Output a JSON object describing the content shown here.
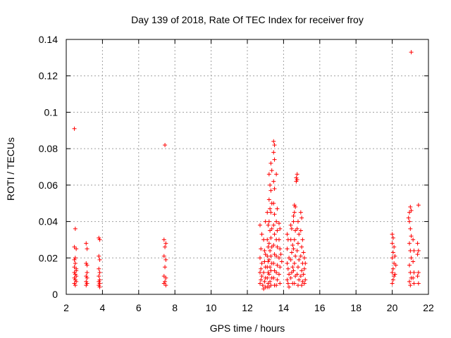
{
  "chart_data": {
    "type": "scatter",
    "title": "Day 139 of 2018, Rate Of TEC Index for receiver froy",
    "xlabel": "GPS time / hours",
    "ylabel": "ROTI / TECUs",
    "xlim": [
      2,
      22
    ],
    "ylim": [
      0,
      0.14
    ],
    "xticks": [
      2,
      4,
      6,
      8,
      10,
      12,
      14,
      16,
      18,
      20,
      22
    ],
    "yticks": [
      0,
      0.02,
      0.04,
      0.06,
      0.08,
      0.1,
      0.12,
      0.14
    ],
    "grid": true,
    "marker": "+",
    "color": "#ff0000",
    "series": [
      {
        "name": "ROTI",
        "points": [
          [
            2.45,
            0.091
          ],
          [
            2.5,
            0.036
          ],
          [
            2.45,
            0.026
          ],
          [
            2.55,
            0.025
          ],
          [
            2.45,
            0.019
          ],
          [
            2.5,
            0.017
          ],
          [
            2.55,
            0.014
          ],
          [
            2.45,
            0.012
          ],
          [
            2.5,
            0.011
          ],
          [
            2.55,
            0.01
          ],
          [
            2.45,
            0.009
          ],
          [
            2.5,
            0.008
          ],
          [
            2.55,
            0.007
          ],
          [
            2.45,
            0.006
          ],
          [
            2.5,
            0.005
          ],
          [
            2.55,
            0.013
          ],
          [
            2.45,
            0.015
          ],
          [
            2.5,
            0.02
          ],
          [
            3.1,
            0.028
          ],
          [
            3.15,
            0.025
          ],
          [
            3.1,
            0.017
          ],
          [
            3.15,
            0.016
          ],
          [
            3.1,
            0.01
          ],
          [
            3.15,
            0.009
          ],
          [
            3.1,
            0.007
          ],
          [
            3.15,
            0.006
          ],
          [
            3.1,
            0.005
          ],
          [
            3.15,
            0.012
          ],
          [
            3.8,
            0.031
          ],
          [
            3.85,
            0.03
          ],
          [
            3.8,
            0.021
          ],
          [
            3.85,
            0.019
          ],
          [
            3.8,
            0.014
          ],
          [
            3.85,
            0.012
          ],
          [
            3.8,
            0.01
          ],
          [
            3.85,
            0.008
          ],
          [
            3.8,
            0.007
          ],
          [
            3.85,
            0.006
          ],
          [
            3.8,
            0.005
          ],
          [
            3.85,
            0.004
          ],
          [
            7.45,
            0.082
          ],
          [
            7.4,
            0.03
          ],
          [
            7.5,
            0.028
          ],
          [
            7.45,
            0.026
          ],
          [
            7.4,
            0.021
          ],
          [
            7.5,
            0.019
          ],
          [
            7.45,
            0.015
          ],
          [
            7.4,
            0.01
          ],
          [
            7.5,
            0.009
          ],
          [
            7.45,
            0.007
          ],
          [
            7.4,
            0.006
          ],
          [
            7.5,
            0.005
          ],
          [
            12.7,
            0.038
          ],
          [
            12.8,
            0.033
          ],
          [
            12.75,
            0.025
          ],
          [
            12.7,
            0.02
          ],
          [
            12.8,
            0.017
          ],
          [
            12.75,
            0.014
          ],
          [
            12.7,
            0.012
          ],
          [
            12.8,
            0.01
          ],
          [
            12.75,
            0.008
          ],
          [
            12.7,
            0.006
          ],
          [
            12.85,
            0.005
          ],
          [
            12.9,
            0.03
          ],
          [
            12.95,
            0.024
          ],
          [
            13.0,
            0.04
          ],
          [
            13.0,
            0.022
          ],
          [
            12.95,
            0.018
          ],
          [
            13.0,
            0.015
          ],
          [
            12.9,
            0.012
          ],
          [
            13.0,
            0.009
          ],
          [
            12.95,
            0.007
          ],
          [
            13.0,
            0.004
          ],
          [
            12.9,
            0.003
          ],
          [
            13.1,
            0.045
          ],
          [
            13.15,
            0.038
          ],
          [
            13.1,
            0.03
          ],
          [
            13.15,
            0.026
          ],
          [
            13.1,
            0.021
          ],
          [
            13.15,
            0.018
          ],
          [
            13.1,
            0.015
          ],
          [
            13.15,
            0.012
          ],
          [
            13.1,
            0.009
          ],
          [
            13.15,
            0.006
          ],
          [
            13.1,
            0.004
          ],
          [
            13.2,
            0.066
          ],
          [
            13.25,
            0.06
          ],
          [
            13.2,
            0.052
          ],
          [
            13.25,
            0.047
          ],
          [
            13.2,
            0.04
          ],
          [
            13.25,
            0.035
          ],
          [
            13.2,
            0.028
          ],
          [
            13.25,
            0.024
          ],
          [
            13.2,
            0.019
          ],
          [
            13.25,
            0.015
          ],
          [
            13.2,
            0.011
          ],
          [
            13.25,
            0.007
          ],
          [
            13.2,
            0.004
          ],
          [
            13.3,
            0.072
          ],
          [
            13.35,
            0.068
          ],
          [
            13.3,
            0.057
          ],
          [
            13.35,
            0.05
          ],
          [
            13.3,
            0.045
          ],
          [
            13.35,
            0.036
          ],
          [
            13.3,
            0.031
          ],
          [
            13.35,
            0.026
          ],
          [
            13.3,
            0.021
          ],
          [
            13.35,
            0.017
          ],
          [
            13.3,
            0.013
          ],
          [
            13.35,
            0.009
          ],
          [
            13.3,
            0.005
          ],
          [
            13.45,
            0.084
          ],
          [
            13.5,
            0.082
          ],
          [
            13.45,
            0.078
          ],
          [
            13.5,
            0.074
          ],
          [
            13.45,
            0.062
          ],
          [
            13.5,
            0.058
          ],
          [
            13.45,
            0.05
          ],
          [
            13.5,
            0.044
          ],
          [
            13.45,
            0.038
          ],
          [
            13.5,
            0.033
          ],
          [
            13.45,
            0.027
          ],
          [
            13.5,
            0.022
          ],
          [
            13.45,
            0.017
          ],
          [
            13.5,
            0.013
          ],
          [
            13.45,
            0.009
          ],
          [
            13.5,
            0.005
          ],
          [
            13.6,
            0.066
          ],
          [
            13.65,
            0.047
          ],
          [
            13.6,
            0.04
          ],
          [
            13.65,
            0.035
          ],
          [
            13.6,
            0.03
          ],
          [
            13.65,
            0.026
          ],
          [
            13.6,
            0.021
          ],
          [
            13.65,
            0.016
          ],
          [
            13.6,
            0.012
          ],
          [
            13.65,
            0.008
          ],
          [
            13.6,
            0.005
          ],
          [
            13.75,
            0.039
          ],
          [
            13.8,
            0.036
          ],
          [
            13.75,
            0.03
          ],
          [
            13.8,
            0.025
          ],
          [
            13.75,
            0.02
          ],
          [
            13.8,
            0.015
          ],
          [
            13.75,
            0.011
          ],
          [
            13.8,
            0.006
          ],
          [
            13.85,
            0.022
          ],
          [
            13.9,
            0.018
          ],
          [
            14.2,
            0.033
          ],
          [
            14.25,
            0.03
          ],
          [
            14.2,
            0.025
          ],
          [
            14.3,
            0.02
          ],
          [
            14.2,
            0.017
          ],
          [
            14.25,
            0.014
          ],
          [
            14.3,
            0.011
          ],
          [
            14.2,
            0.008
          ],
          [
            14.25,
            0.006
          ],
          [
            14.3,
            0.004
          ],
          [
            14.4,
            0.038
          ],
          [
            14.45,
            0.036
          ],
          [
            14.4,
            0.03
          ],
          [
            14.5,
            0.027
          ],
          [
            14.45,
            0.023
          ],
          [
            14.4,
            0.019
          ],
          [
            14.5,
            0.015
          ],
          [
            14.45,
            0.012
          ],
          [
            14.4,
            0.009
          ],
          [
            14.5,
            0.006
          ],
          [
            14.55,
            0.043
          ],
          [
            14.6,
            0.049
          ],
          [
            14.65,
            0.048
          ],
          [
            14.6,
            0.045
          ],
          [
            14.55,
            0.04
          ],
          [
            14.65,
            0.035
          ],
          [
            14.6,
            0.03
          ],
          [
            14.55,
            0.025
          ],
          [
            14.65,
            0.021
          ],
          [
            14.6,
            0.017
          ],
          [
            14.55,
            0.013
          ],
          [
            14.65,
            0.01
          ],
          [
            14.6,
            0.006
          ],
          [
            14.75,
            0.066
          ],
          [
            14.7,
            0.064
          ],
          [
            14.75,
            0.063
          ],
          [
            14.7,
            0.062
          ],
          [
            14.8,
            0.04
          ],
          [
            14.75,
            0.036
          ],
          [
            14.85,
            0.033
          ],
          [
            14.8,
            0.028
          ],
          [
            14.75,
            0.024
          ],
          [
            14.85,
            0.019
          ],
          [
            14.8,
            0.015
          ],
          [
            14.75,
            0.011
          ],
          [
            14.85,
            0.008
          ],
          [
            14.8,
            0.005
          ],
          [
            14.95,
            0.045
          ],
          [
            15.0,
            0.042
          ],
          [
            14.95,
            0.035
          ],
          [
            15.05,
            0.03
          ],
          [
            15.0,
            0.026
          ],
          [
            14.95,
            0.021
          ],
          [
            15.05,
            0.017
          ],
          [
            15.0,
            0.013
          ],
          [
            14.95,
            0.01
          ],
          [
            15.05,
            0.007
          ],
          [
            15.0,
            0.005
          ],
          [
            15.1,
            0.023
          ],
          [
            15.15,
            0.02
          ],
          [
            15.2,
            0.017
          ],
          [
            15.15,
            0.014
          ],
          [
            15.1,
            0.011
          ],
          [
            15.2,
            0.008
          ],
          [
            15.15,
            0.006
          ],
          [
            20.0,
            0.033
          ],
          [
            20.05,
            0.031
          ],
          [
            20.0,
            0.028
          ],
          [
            20.1,
            0.026
          ],
          [
            20.05,
            0.023
          ],
          [
            20.0,
            0.02
          ],
          [
            20.1,
            0.017
          ],
          [
            20.05,
            0.014
          ],
          [
            20.0,
            0.012
          ],
          [
            20.1,
            0.01
          ],
          [
            20.05,
            0.008
          ],
          [
            20.0,
            0.006
          ],
          [
            20.15,
            0.021
          ],
          [
            20.2,
            0.016
          ],
          [
            20.15,
            0.011
          ],
          [
            20.9,
            0.042
          ],
          [
            20.95,
            0.045
          ],
          [
            21.0,
            0.048
          ],
          [
            21.05,
            0.046
          ],
          [
            20.95,
            0.04
          ],
          [
            21.0,
            0.036
          ],
          [
            21.05,
            0.032
          ],
          [
            20.95,
            0.028
          ],
          [
            21.0,
            0.024
          ],
          [
            21.05,
            0.02
          ],
          [
            20.95,
            0.016
          ],
          [
            21.0,
            0.012
          ],
          [
            21.05,
            0.009
          ],
          [
            20.95,
            0.007
          ],
          [
            21.0,
            0.005
          ],
          [
            21.05,
            0.133
          ],
          [
            21.15,
            0.03
          ],
          [
            21.2,
            0.024
          ],
          [
            21.15,
            0.018
          ],
          [
            21.2,
            0.012
          ],
          [
            21.15,
            0.009
          ],
          [
            21.2,
            0.006
          ],
          [
            21.45,
            0.049
          ],
          [
            21.4,
            0.028
          ],
          [
            21.45,
            0.024
          ],
          [
            21.4,
            0.022
          ],
          [
            21.45,
            0.012
          ],
          [
            21.4,
            0.01
          ],
          [
            21.45,
            0.006
          ]
        ]
      }
    ]
  }
}
